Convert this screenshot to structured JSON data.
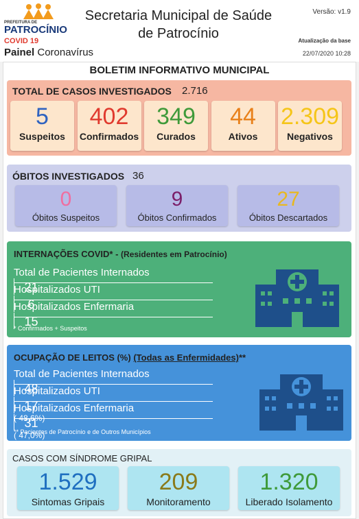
{
  "header": {
    "logo_top": "PREFEITURA DE",
    "logo_name": "PATROCÍNIO",
    "logo_covid": "COVID 19",
    "title_lines": [
      "Secretaria Municipal de Saúde",
      "de Patrocínio"
    ],
    "version": "Versão: v1.9",
    "update_label": "Atualização da base",
    "update_date": "22/07/2020 10:28",
    "panel": "Painel",
    "panel_sub": "Coronavírus"
  },
  "bulletin_title": "BOLETIM INFORMATIVO MUNICIPAL",
  "cases": {
    "label": "TOTAL DE CASOS INVESTIGADOS",
    "total": "2.716",
    "items": [
      {
        "value": 5,
        "label": "Suspeitos"
      },
      {
        "value": 402,
        "label": "Confirmados"
      },
      {
        "value": 349,
        "label": "Curados"
      },
      {
        "value": 44,
        "label": "Ativos"
      },
      {
        "value": "2.309",
        "label": "Negativos"
      }
    ]
  },
  "deaths": {
    "label": "ÓBITOS INVESTIGADOS",
    "total": 36,
    "items": [
      {
        "value": 0,
        "label": "Óbitos Suspeitos"
      },
      {
        "value": 9,
        "label": "Óbitos Confirmados"
      },
      {
        "value": 27,
        "label": "Óbitos Descartados"
      }
    ]
  },
  "hospital": {
    "title": "INTERNAÇÕES COVID*",
    "separator": " - ",
    "subtitle": "(Residentes em Patrocínio)",
    "rows": [
      [
        "Total de Pacientes Internados",
        21
      ],
      [
        "Hospitalizados UTI",
        6
      ],
      [
        "Hospitalizados Enfermaria",
        15
      ]
    ],
    "footnote": "* Confirmados + Suspeitos"
  },
  "beds": {
    "title": "OCUPAÇÃO DE LEITOS (%)",
    "link": "(Todas as Enfermidades)",
    "star": "**",
    "rows": [
      [
        "Total de Pacientes Internados",
        48,
        null
      ],
      [
        "Hospitalizados UTI",
        17,
        "( 48,6%)"
      ],
      [
        "Hospitalizados Enfermaria",
        31,
        "( 47,0%)"
      ]
    ],
    "footnote": "** Pacientes de Patrocínio e de Outros Municípios"
  },
  "flu": {
    "label": "CASOS COM SÍNDROME GRIPAL",
    "items": [
      {
        "value": "1.529",
        "label": "Sintomas Gripais"
      },
      {
        "value": 209,
        "label": "Monitoramento"
      },
      {
        "value": "1.320",
        "label": "Liberado Isolamento"
      }
    ]
  }
}
